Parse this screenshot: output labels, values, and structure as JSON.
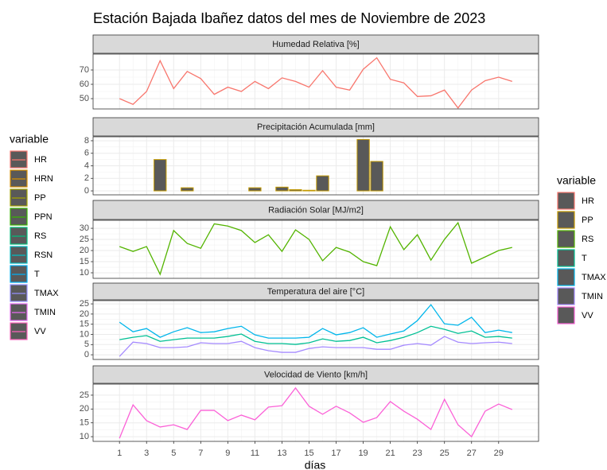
{
  "title": "Estación Bajada Ibañez datos del mes de Noviembre de 2023",
  "xlabel": "días",
  "legend_left": {
    "title": "variable",
    "items": [
      {
        "name": "HR",
        "color": "#F8766D"
      },
      {
        "name": "HRN",
        "color": "#D89000"
      },
      {
        "name": "PP",
        "color": "#A3A500"
      },
      {
        "name": "PPN",
        "color": "#39B600"
      },
      {
        "name": "RS",
        "color": "#00BF7D"
      },
      {
        "name": "RSN",
        "color": "#00BFC4"
      },
      {
        "name": "T",
        "color": "#00B0F6"
      },
      {
        "name": "TMAX",
        "color": "#9590FF"
      },
      {
        "name": "TMIN",
        "color": "#E76BF3"
      },
      {
        "name": "VV",
        "color": "#FF62BC"
      }
    ]
  },
  "legend_right": {
    "title": "variable",
    "items": [
      {
        "name": "HR",
        "color": "#F8766D"
      },
      {
        "name": "PP",
        "color": "#C49A00"
      },
      {
        "name": "RS",
        "color": "#53B400"
      },
      {
        "name": "T",
        "color": "#00C094"
      },
      {
        "name": "TMAX",
        "color": "#00B6EB"
      },
      {
        "name": "TMIN",
        "color": "#A58AFF"
      },
      {
        "name": "VV",
        "color": "#FB61D7"
      }
    ]
  },
  "chart_data": [
    {
      "type": "line",
      "title": "Humedad Relativa [%]",
      "x": [
        1,
        2,
        3,
        4,
        5,
        6,
        7,
        8,
        9,
        10,
        11,
        12,
        13,
        14,
        15,
        16,
        17,
        18,
        19,
        20,
        21,
        22,
        23,
        24,
        25,
        26,
        27,
        28,
        29,
        30
      ],
      "xlim": [
        -0.95,
        31.95
      ],
      "xticks": [
        1,
        3,
        5,
        7,
        9,
        11,
        13,
        15,
        17,
        19,
        21,
        23,
        25,
        27,
        29
      ],
      "ylim": [
        42.8,
        81.1
      ],
      "yticks": [
        50,
        60,
        70
      ],
      "series": [
        {
          "name": "HR",
          "color": "#F8766D",
          "values": [
            50,
            46,
            55,
            76.5,
            57,
            69,
            64,
            53,
            58,
            55,
            62,
            57,
            64.5,
            62,
            58,
            69.5,
            58,
            56,
            70.5,
            78.5,
            63.5,
            61,
            51.5,
            52,
            56,
            43.5,
            56,
            62.5,
            65,
            62
          ]
        }
      ]
    },
    {
      "type": "bar",
      "title": "Precipitación Acumulada [mm]",
      "x": [
        1,
        2,
        3,
        4,
        5,
        6,
        7,
        8,
        9,
        10,
        11,
        12,
        13,
        14,
        15,
        16,
        17,
        18,
        19,
        20,
        21,
        22,
        23,
        24,
        25,
        26,
        27,
        28,
        29,
        30
      ],
      "xlim": [
        -0.95,
        31.95
      ],
      "xticks": [
        1,
        3,
        5,
        7,
        9,
        11,
        13,
        15,
        17,
        19,
        21,
        23,
        25,
        27,
        29
      ],
      "ylim": [
        -0.63,
        8.63
      ],
      "yticks": [
        0,
        2,
        4,
        6,
        8
      ],
      "series": [
        {
          "name": "PP",
          "color": "#C49A00",
          "values": [
            0,
            0,
            0,
            5,
            0,
            0.5,
            0,
            0,
            0,
            0,
            0.5,
            0,
            0.6,
            0.2,
            0.1,
            2.4,
            0,
            0,
            8.2,
            4.7,
            0,
            0,
            0,
            0,
            0,
            0,
            0,
            0,
            0,
            0
          ]
        }
      ]
    },
    {
      "type": "line",
      "title": "Radiación Solar [MJ/m2]",
      "x": [
        1,
        2,
        3,
        4,
        5,
        6,
        7,
        8,
        9,
        10,
        11,
        12,
        13,
        14,
        15,
        16,
        17,
        18,
        19,
        20,
        21,
        22,
        23,
        24,
        25,
        26,
        27,
        28,
        29,
        30
      ],
      "xlim": [
        -0.95,
        31.95
      ],
      "xticks": [
        1,
        3,
        5,
        7,
        9,
        11,
        13,
        15,
        17,
        19,
        21,
        23,
        25,
        27,
        29
      ],
      "ylim": [
        7.5,
        33.6
      ],
      "yticks": [
        10,
        15,
        20,
        25,
        30
      ],
      "series": [
        {
          "name": "RS",
          "color": "#53B400",
          "values": [
            21.8,
            19.6,
            21.8,
            9.3,
            29,
            23.2,
            21,
            32,
            31,
            29,
            23.6,
            27.1,
            19.6,
            29.3,
            25,
            15.4,
            21.4,
            19.3,
            15,
            13.2,
            30.7,
            20.4,
            27.1,
            15.7,
            25,
            32.5,
            14.3,
            17.1,
            20,
            21.4
          ]
        }
      ]
    },
    {
      "type": "line",
      "title": "Temperatura del aire [°C]",
      "x": [
        1,
        2,
        3,
        4,
        5,
        6,
        7,
        8,
        9,
        10,
        11,
        12,
        13,
        14,
        15,
        16,
        17,
        18,
        19,
        20,
        21,
        22,
        23,
        24,
        25,
        26,
        27,
        28,
        29,
        30
      ],
      "xlim": [
        -0.95,
        31.95
      ],
      "xticks": [
        1,
        3,
        5,
        7,
        9,
        11,
        13,
        15,
        17,
        19,
        21,
        23,
        25,
        27,
        29
      ],
      "ylim": [
        -2.3,
        26.6
      ],
      "yticks": [
        0,
        5,
        10,
        15,
        20,
        25
      ],
      "series": [
        {
          "name": "T",
          "color": "#00C094",
          "values": [
            7.4,
            8.6,
            9.4,
            6.6,
            7.4,
            8.2,
            8.2,
            8.2,
            9,
            10.2,
            6.6,
            5.5,
            5.5,
            5.1,
            5.9,
            7.8,
            6.6,
            7,
            8.6,
            5.9,
            7,
            8.6,
            10.9,
            14,
            12.5,
            10.5,
            11.7,
            8.6,
            9,
            8.2
          ]
        },
        {
          "name": "TMAX",
          "color": "#00B6EB",
          "values": [
            16,
            11.3,
            12.9,
            8.6,
            11.3,
            13.3,
            10.9,
            11.3,
            12.9,
            14,
            9.8,
            8.2,
            8.2,
            8.2,
            8.6,
            12.9,
            9.8,
            10.9,
            13.3,
            8.6,
            10.2,
            11.7,
            16.8,
            24.6,
            15.2,
            14.5,
            18.4,
            10.9,
            12.1,
            10.9
          ]
        },
        {
          "name": "TMIN",
          "color": "#A58AFF",
          "values": [
            -0.8,
            6.2,
            5.5,
            3.5,
            3.5,
            3.9,
            5.9,
            5.5,
            5.5,
            6.6,
            3.5,
            2,
            1.2,
            1.2,
            3.1,
            3.9,
            3.5,
            3.5,
            3.5,
            2.7,
            2.7,
            4.7,
            5.5,
            4.7,
            9,
            6.2,
            5.5,
            5.9,
            6.2,
            5.5
          ]
        }
      ]
    },
    {
      "type": "line",
      "title": "Velocidad de Viento [km/h]",
      "x": [
        1,
        2,
        3,
        4,
        5,
        6,
        7,
        8,
        9,
        10,
        11,
        12,
        13,
        14,
        15,
        16,
        17,
        18,
        19,
        20,
        21,
        22,
        23,
        24,
        25,
        26,
        27,
        28,
        29,
        30
      ],
      "xlim": [
        -0.95,
        31.95
      ],
      "xticks": [
        1,
        3,
        5,
        7,
        9,
        11,
        13,
        15,
        17,
        19,
        21,
        23,
        25,
        27,
        29
      ],
      "ylim": [
        8.3,
        29
      ],
      "yticks": [
        10,
        15,
        20,
        25
      ],
      "series": [
        {
          "name": "VV",
          "color": "#FB61D7",
          "values": [
            9.4,
            21.5,
            15.8,
            13.5,
            14.3,
            12.6,
            19.5,
            19.5,
            15.8,
            17.8,
            16.1,
            20.7,
            21.2,
            27.6,
            21,
            18.1,
            21,
            18.6,
            15.2,
            16.9,
            22.7,
            19.2,
            16.3,
            12.6,
            23.5,
            14.3,
            10,
            19.2,
            21.8,
            19.8
          ]
        }
      ]
    }
  ]
}
